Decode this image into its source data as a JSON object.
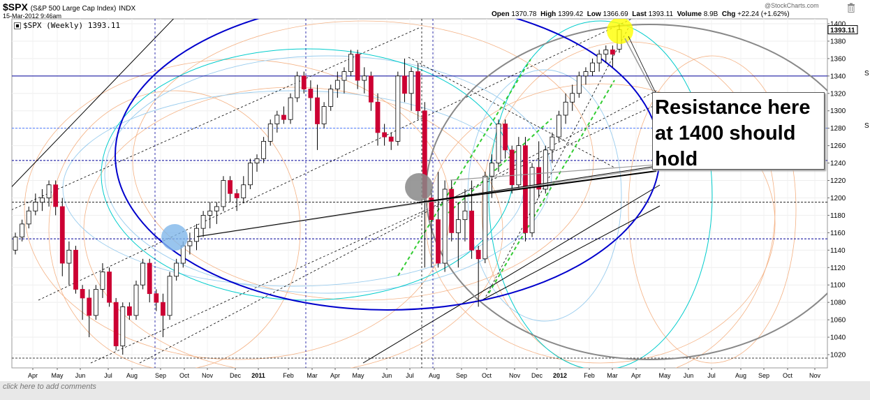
{
  "header": {
    "symbol": "$SPX",
    "description": "(S&P 500 Large Cap Index)",
    "exchange": "INDX",
    "datestamp": "15-Mar-2012 9:46am",
    "series_label": "$SPX (Weekly) 1393.11",
    "brand": "@StockCharts.com"
  },
  "quote": {
    "open_label": "Open",
    "open": "1370.78",
    "high_label": "High",
    "high": "1399.42",
    "low_label": "Low",
    "low": "1366.69",
    "last_label": "Last",
    "last": "1393.11",
    "volume_label": "Volume",
    "volume": "8.9B",
    "chg_label": "Chg",
    "chg": "+22.24 (+1.62%)"
  },
  "annotation": {
    "callout_line1": "Resistance here",
    "callout_line2": "at 1400 should",
    "callout_line3": "hold"
  },
  "footer": {
    "text": "click here to add comments"
  },
  "sidebar": {
    "s1": "S",
    "s2": "S"
  },
  "colors": {
    "up": "#ffffff",
    "down": "#cc0033",
    "ellipse": "#0000cc",
    "cyan": "#00cccc",
    "orange": "#f4b183",
    "lightblue": "#99ccee",
    "green": "#33cc33",
    "yellow": "#ffff00"
  },
  "chart_data": {
    "type": "candlestick",
    "price_axis": {
      "ticks": [
        1020,
        1040,
        1060,
        1080,
        1100,
        1120,
        1140,
        1160,
        1180,
        1200,
        1220,
        1240,
        1260,
        1280,
        1300,
        1320,
        1340,
        1360,
        1380,
        1400
      ],
      "last_label": "1393.11",
      "range": [
        1010,
        1410
      ]
    },
    "time_axis": {
      "labels": [
        {
          "label": "Apr",
          "bold": false
        },
        {
          "label": "May",
          "bold": false
        },
        {
          "label": "Jun",
          "bold": false
        },
        {
          "label": "Jul",
          "bold": false
        },
        {
          "label": "Aug",
          "bold": false
        },
        {
          "label": "Sep",
          "bold": false
        },
        {
          "label": "Oct",
          "bold": false
        },
        {
          "label": "Nov",
          "bold": false
        },
        {
          "label": "Dec",
          "bold": false
        },
        {
          "label": "2011",
          "bold": true
        },
        {
          "label": "Feb",
          "bold": false
        },
        {
          "label": "Mar",
          "bold": false
        },
        {
          "label": "Apr",
          "bold": false
        },
        {
          "label": "May",
          "bold": false
        },
        {
          "label": "Jun",
          "bold": false
        },
        {
          "label": "Jul",
          "bold": false
        },
        {
          "label": "Aug",
          "bold": false
        },
        {
          "label": "Sep",
          "bold": false
        },
        {
          "label": "Oct",
          "bold": false
        },
        {
          "label": "Nov",
          "bold": false
        },
        {
          "label": "Dec",
          "bold": false
        },
        {
          "label": "2012",
          "bold": true
        },
        {
          "label": "Feb",
          "bold": false
        },
        {
          "label": "Mar",
          "bold": false
        },
        {
          "label": "Apr",
          "bold": false
        },
        {
          "label": "May",
          "bold": false
        },
        {
          "label": "Jun",
          "bold": false
        },
        {
          "label": "Jul",
          "bold": false
        },
        {
          "label": "Aug",
          "bold": false
        },
        {
          "label": "Sep",
          "bold": false
        },
        {
          "label": "Oct",
          "bold": false
        },
        {
          "label": "Nov",
          "bold": false
        }
      ]
    },
    "candles": [
      [
        1140,
        1160,
        1135,
        1155
      ],
      [
        1155,
        1175,
        1150,
        1170
      ],
      [
        1170,
        1190,
        1165,
        1185
      ],
      [
        1185,
        1205,
        1180,
        1195
      ],
      [
        1195,
        1210,
        1185,
        1200
      ],
      [
        1200,
        1220,
        1190,
        1215
      ],
      [
        1215,
        1220,
        1180,
        1190
      ],
      [
        1190,
        1200,
        1110,
        1125
      ],
      [
        1125,
        1150,
        1100,
        1140
      ],
      [
        1140,
        1145,
        1090,
        1095
      ],
      [
        1095,
        1100,
        1060,
        1085
      ],
      [
        1085,
        1095,
        1040,
        1065
      ],
      [
        1065,
        1100,
        1060,
        1095
      ],
      [
        1095,
        1125,
        1085,
        1115
      ],
      [
        1115,
        1120,
        1075,
        1080
      ],
      [
        1080,
        1085,
        1025,
        1030
      ],
      [
        1030,
        1080,
        1020,
        1075
      ],
      [
        1075,
        1080,
        1060,
        1065
      ],
      [
        1065,
        1105,
        1060,
        1100
      ],
      [
        1100,
        1130,
        1095,
        1125
      ],
      [
        1125,
        1130,
        1080,
        1090
      ],
      [
        1090,
        1095,
        1070,
        1080
      ],
      [
        1080,
        1090,
        1040,
        1065
      ],
      [
        1065,
        1115,
        1060,
        1110
      ],
      [
        1110,
        1130,
        1105,
        1125
      ],
      [
        1125,
        1150,
        1120,
        1145
      ],
      [
        1145,
        1160,
        1135,
        1150
      ],
      [
        1150,
        1170,
        1140,
        1165
      ],
      [
        1165,
        1185,
        1155,
        1180
      ],
      [
        1180,
        1195,
        1165,
        1185
      ],
      [
        1185,
        1195,
        1170,
        1190
      ],
      [
        1190,
        1225,
        1185,
        1220
      ],
      [
        1220,
        1225,
        1195,
        1205
      ],
      [
        1205,
        1210,
        1185,
        1200
      ],
      [
        1200,
        1225,
        1195,
        1215
      ],
      [
        1215,
        1245,
        1210,
        1240
      ],
      [
        1240,
        1250,
        1230,
        1245
      ],
      [
        1245,
        1270,
        1240,
        1265
      ],
      [
        1265,
        1290,
        1260,
        1285
      ],
      [
        1285,
        1300,
        1275,
        1295
      ],
      [
        1295,
        1305,
        1285,
        1290
      ],
      [
        1290,
        1320,
        1285,
        1315
      ],
      [
        1315,
        1345,
        1310,
        1340
      ],
      [
        1340,
        1345,
        1320,
        1325
      ],
      [
        1325,
        1335,
        1300,
        1315
      ],
      [
        1315,
        1330,
        1255,
        1285
      ],
      [
        1285,
        1310,
        1280,
        1305
      ],
      [
        1305,
        1330,
        1300,
        1325
      ],
      [
        1325,
        1345,
        1315,
        1335
      ],
      [
        1335,
        1350,
        1320,
        1345
      ],
      [
        1345,
        1370,
        1340,
        1365
      ],
      [
        1365,
        1370,
        1325,
        1335
      ],
      [
        1335,
        1350,
        1320,
        1340
      ],
      [
        1340,
        1345,
        1300,
        1310
      ],
      [
        1310,
        1320,
        1260,
        1275
      ],
      [
        1275,
        1285,
        1260,
        1270
      ],
      [
        1270,
        1275,
        1255,
        1265
      ],
      [
        1265,
        1345,
        1260,
        1340
      ],
      [
        1340,
        1360,
        1310,
        1320
      ],
      [
        1320,
        1350,
        1300,
        1345
      ],
      [
        1345,
        1355,
        1290,
        1300
      ],
      [
        1300,
        1310,
        1120,
        1200
      ],
      [
        1200,
        1210,
        1120,
        1175
      ],
      [
        1175,
        1230,
        1120,
        1125
      ],
      [
        1125,
        1220,
        1115,
        1210
      ],
      [
        1210,
        1220,
        1150,
        1160
      ],
      [
        1160,
        1195,
        1120,
        1175
      ],
      [
        1175,
        1210,
        1150,
        1185
      ],
      [
        1185,
        1220,
        1130,
        1140
      ],
      [
        1140,
        1145,
        1075,
        1130
      ],
      [
        1130,
        1230,
        1125,
        1225
      ],
      [
        1225,
        1250,
        1200,
        1240
      ],
      [
        1240,
        1290,
        1230,
        1285
      ],
      [
        1285,
        1290,
        1245,
        1255
      ],
      [
        1255,
        1260,
        1205,
        1215
      ],
      [
        1215,
        1270,
        1210,
        1260
      ],
      [
        1260,
        1270,
        1150,
        1160
      ],
      [
        1160,
        1240,
        1155,
        1235
      ],
      [
        1235,
        1265,
        1200,
        1210
      ],
      [
        1210,
        1260,
        1205,
        1255
      ],
      [
        1255,
        1275,
        1240,
        1270
      ],
      [
        1270,
        1300,
        1265,
        1295
      ],
      [
        1295,
        1320,
        1285,
        1310
      ],
      [
        1310,
        1330,
        1300,
        1320
      ],
      [
        1320,
        1345,
        1315,
        1340
      ],
      [
        1340,
        1350,
        1330,
        1345
      ],
      [
        1345,
        1360,
        1340,
        1355
      ],
      [
        1355,
        1370,
        1345,
        1365
      ],
      [
        1365,
        1375,
        1355,
        1370
      ],
      [
        1370,
        1375,
        1350,
        1365
      ],
      [
        1370.78,
        1399.42,
        1366.69,
        1393.11
      ]
    ]
  }
}
